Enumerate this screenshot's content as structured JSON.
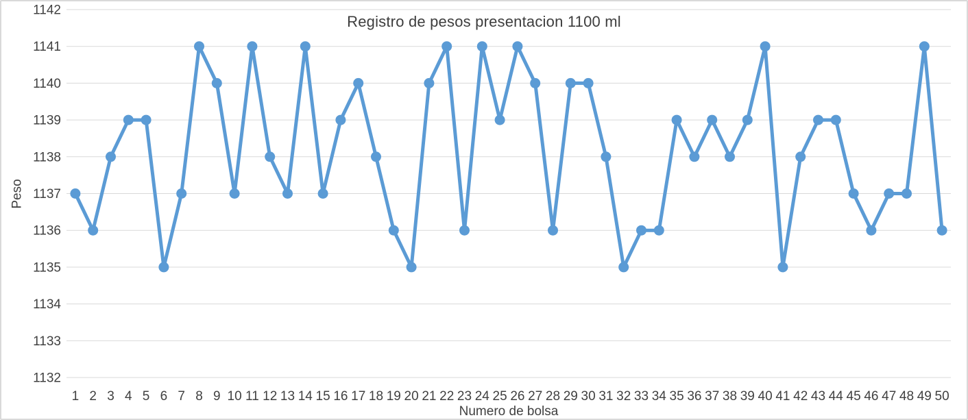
{
  "chart_data": {
    "type": "line",
    "title": "Registro de pesos presentacion 1100 ml",
    "xlabel": "Numero de bolsa",
    "ylabel": "Peso",
    "x": [
      1,
      2,
      3,
      4,
      5,
      6,
      7,
      8,
      9,
      10,
      11,
      12,
      13,
      14,
      15,
      16,
      17,
      18,
      19,
      20,
      21,
      22,
      23,
      24,
      25,
      26,
      27,
      28,
      29,
      30,
      31,
      32,
      33,
      34,
      35,
      36,
      37,
      38,
      39,
      40,
      41,
      42,
      43,
      44,
      45,
      46,
      47,
      48,
      49,
      50
    ],
    "values": [
      1137,
      1136,
      1138,
      1139,
      1139,
      1135,
      1137,
      1141,
      1140,
      1137,
      1141,
      1138,
      1137,
      1141,
      1137,
      1139,
      1140,
      1138,
      1136,
      1135,
      1140,
      1141,
      1136,
      1141,
      1139,
      1141,
      1140,
      1136,
      1140,
      1140,
      1138,
      1135,
      1136,
      1136,
      1139,
      1138,
      1139,
      1138,
      1139,
      1141,
      1135,
      1138,
      1139,
      1139,
      1137,
      1136,
      1137,
      1137,
      1141,
      1136
    ],
    "ylim": [
      1132,
      1142
    ],
    "ytick_step": 1,
    "grid": true,
    "legend": false,
    "marker": "circle",
    "series_color": "#5B9BD5",
    "gridline_color": "#D9D9D9",
    "text_color": "#404040",
    "frame_border_color": "#D9D9D9"
  }
}
